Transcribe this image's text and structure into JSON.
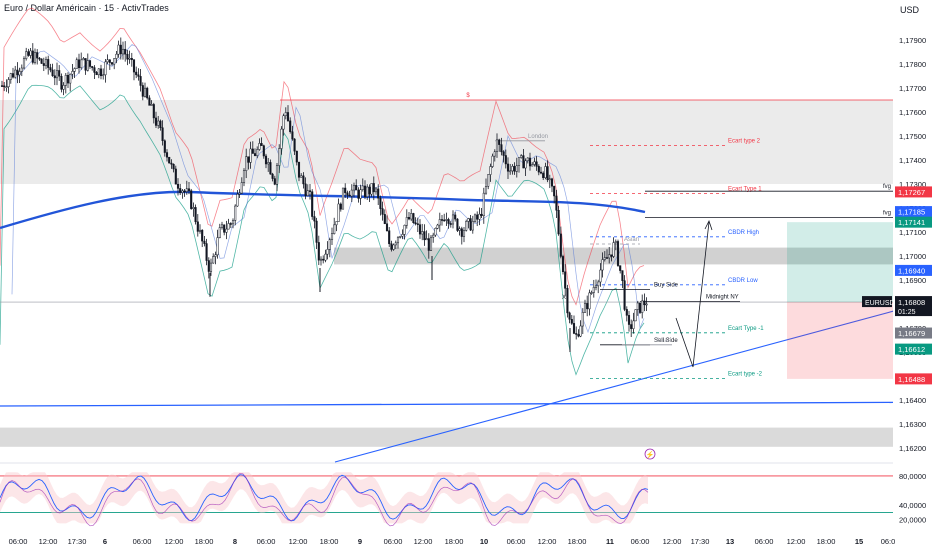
{
  "header": {
    "title": "Euro / Dollar Américain · 15 · ActivTrades",
    "currency": "USD"
  },
  "chart_data": {
    "type": "candlestick",
    "symbol": "EURUSD",
    "price_axis": {
      "ticks": [
        "1,17900",
        "1,17800",
        "1,17700",
        "1,17600",
        "1,17500",
        "1,17400",
        "1,17300",
        "1,17200",
        "1,17100",
        "1,17000",
        "1,16900",
        "1,16800",
        "1,16700",
        "1,16600",
        "1,16500",
        "1,16400",
        "1,16300",
        "1,16200"
      ],
      "range": [
        1.1615,
        1.1805
      ]
    },
    "badges": [
      {
        "text": "1,17267",
        "color": "#f23645",
        "price": 1.17267
      },
      {
        "text": "1,17185",
        "color": "#2962ff",
        "price": 1.17185
      },
      {
        "text": "1,17141",
        "color": "#089981",
        "price": 1.17141
      },
      {
        "text": "1,16940",
        "color": "#2962ff",
        "price": 1.1694
      },
      {
        "text": "1,16679",
        "color": "#787b86",
        "price": 1.16679
      },
      {
        "text": "1,16612",
        "color": "#089981",
        "price": 1.16612
      },
      {
        "text": "1,16488",
        "color": "#f23645",
        "price": 1.16488
      }
    ],
    "current": {
      "symbol": "EURUSD",
      "price": "1,16808",
      "countdown": "01:25",
      "value": 1.16808
    },
    "time_axis": [
      "06:00",
      "12:00",
      "17:30",
      "6",
      "06:00",
      "12:00",
      "18:00",
      "8",
      "06:00",
      "12:00",
      "18:00",
      "9",
      "06:00",
      "12:00",
      "18:00",
      "10",
      "06:00",
      "12:00",
      "18:00",
      "11",
      "06:00",
      "12:00",
      "17:30",
      "13",
      "06:00",
      "12:00",
      "18:00",
      "15",
      "06:0"
    ],
    "zones": [
      {
        "from": 1.173,
        "to": 1.1765,
        "color": "#e8e8e8"
      },
      {
        "from": 1.16965,
        "to": 1.17035,
        "color": "#c9c9c9"
      },
      {
        "from": 1.16205,
        "to": 1.16285,
        "color": "#d4d4d4"
      }
    ],
    "levels": [
      {
        "label": "$",
        "price": 1.1765,
        "color": "#f23645",
        "style": "solid"
      },
      {
        "label": "London",
        "price": 1.1748,
        "color": "#9598a1",
        "style": "solid"
      },
      {
        "label": "Ecart type 2",
        "price": 1.1746,
        "color": "#f23645",
        "style": "dashed"
      },
      {
        "label": "Ecart Type 1",
        "price": 1.1726,
        "color": "#f23645",
        "style": "dashed"
      },
      {
        "label": "fvg",
        "price": 1.1727,
        "color": "#131722",
        "style": "solid"
      },
      {
        "label": "fvg",
        "price": 1.1716,
        "color": "#131722",
        "style": "solid"
      },
      {
        "label": "Asian",
        "price": 1.1705,
        "color": "#9598a1",
        "style": "dashed"
      },
      {
        "label": "CBDR High",
        "price": 1.1708,
        "color": "#2962ff",
        "style": "dashed"
      },
      {
        "label": "CBDR Low",
        "price": 1.1688,
        "color": "#2962ff",
        "style": "dashed"
      },
      {
        "label": "Buy Side",
        "price": 1.1686,
        "color": "#131722",
        "style": "solid"
      },
      {
        "label": "Midnight NY",
        "price": 1.1681,
        "color": "#131722",
        "style": "solid"
      },
      {
        "label": "X",
        "price": 1.16808,
        "color": "#131722",
        "style": "solid"
      },
      {
        "label": "Ecart Type -1",
        "price": 1.1668,
        "color": "#089981",
        "style": "dashed"
      },
      {
        "label": "Sell Side",
        "price": 1.1663,
        "color": "#131722",
        "style": "solid"
      },
      {
        "label": "Asian",
        "price": 1.1663,
        "color": "#9598a1",
        "style": "solid"
      },
      {
        "label": "Ecart type -2",
        "price": 1.1649,
        "color": "#089981",
        "style": "dashed"
      }
    ],
    "position": {
      "entry": 1.16808,
      "target": 1.17141,
      "stop": 1.16488
    },
    "oscillator": {
      "ticks": [
        "80,0000",
        "40,0000",
        "20,0000"
      ],
      "range": [
        10,
        95
      ],
      "upper": 80,
      "lower": 30
    },
    "colors": {
      "up": "#131722",
      "down": "#131722",
      "bb_upper": "#f23645",
      "bb_lower": "#089981",
      "ma": "#2962ff",
      "trend": "#2962ff"
    }
  }
}
